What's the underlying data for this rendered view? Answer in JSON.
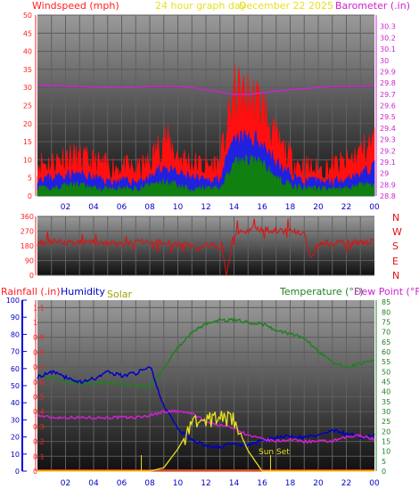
{
  "header": {
    "wind_title": "Windspeed (mph)",
    "graph_title": "24 hour graph day",
    "date": "December 22 2025",
    "baro_title": "Barometer (.in)"
  },
  "x_ticks": [
    "02",
    "04",
    "06",
    "08",
    "10",
    "12",
    "14",
    "16",
    "18",
    "20",
    "22",
    "00"
  ],
  "colors": {
    "wind_title": "#ff2020",
    "graph_title": "#e8e020",
    "baro": "#d020d0",
    "wind_avg": "#2020e0",
    "wind_gust": "#ff1010",
    "wind_low": "#108010",
    "direction": "#e01010",
    "rain": "#0000e0",
    "humidity": "#0000c8",
    "solar": "#e8e020",
    "temperature": "#208020",
    "dewpoint": "#d020d0",
    "left_axis": "#ff2020",
    "rain_axis": "#0000e0"
  },
  "direction_labels": {
    "n1": "N",
    "w": "W",
    "s": "S",
    "e": "E",
    "n2": "N"
  },
  "bottom_labels": {
    "rain": "Rainfall (.in)",
    "humidity": "Humidity",
    "solar": "Solar",
    "temperature": "Temperature (°F)",
    "dewpoint": "Dew Point (°F)",
    "sunset": "Sun Set"
  },
  "chart_data": [
    {
      "type": "line",
      "title": "Windspeed (mph) / Barometer (.in)",
      "xlabel": "",
      "ylabel": "Windspeed (mph)",
      "y2label": "Barometer (.in)",
      "ylim": [
        0,
        50
      ],
      "y2lim": [
        28.8,
        30.4
      ],
      "yticks": [
        0,
        5,
        10,
        15,
        20,
        25,
        30,
        35,
        40,
        45,
        50
      ],
      "y2ticks": [
        "28.8",
        "28.9",
        "29",
        "29.1",
        "29.2",
        "29.3",
        "29.4",
        "29.5",
        "29.6",
        "29.7",
        "29.8",
        "29.9",
        "30",
        "30.1",
        "30.2",
        "30.3"
      ],
      "x": [
        0,
        1,
        2,
        3,
        4,
        5,
        6,
        7,
        8,
        9,
        10,
        11,
        12,
        13,
        14,
        15,
        16,
        17,
        18,
        19,
        20,
        21,
        22,
        23,
        24
      ],
      "series": [
        {
          "name": "gust",
          "values": [
            9,
            9,
            11,
            10,
            9,
            8,
            8,
            7,
            9,
            16,
            11,
            9,
            8,
            9,
            28,
            27,
            25,
            15,
            10,
            8,
            7,
            8,
            9,
            12,
            15
          ]
        },
        {
          "name": "average",
          "values": [
            5,
            5,
            6,
            6,
            5,
            4,
            4,
            4,
            5,
            8,
            6,
            5,
            4,
            5,
            15,
            16,
            15,
            9,
            6,
            4,
            4,
            4,
            5,
            6,
            8
          ]
        },
        {
          "name": "low",
          "values": [
            2,
            2,
            3,
            3,
            2,
            2,
            2,
            2,
            3,
            4,
            3,
            2,
            2,
            2,
            9,
            10,
            9,
            5,
            3,
            2,
            2,
            2,
            2,
            3,
            3
          ]
        },
        {
          "name": "barometer",
          "values": [
            29.78,
            29.78,
            29.77,
            29.77,
            29.76,
            29.76,
            29.76,
            29.76,
            29.77,
            29.77,
            29.77,
            29.76,
            29.74,
            29.72,
            29.7,
            29.7,
            29.71,
            29.73,
            29.74,
            29.75,
            29.76,
            29.77,
            29.77,
            29.77,
            29.78
          ]
        }
      ]
    },
    {
      "type": "line",
      "title": "Wind Direction",
      "ylim": [
        0,
        360
      ],
      "yticks": [
        0,
        90,
        180,
        270,
        360
      ],
      "x": [
        0,
        1,
        2,
        3,
        4,
        5,
        6,
        7,
        8,
        9,
        10,
        11,
        12,
        13,
        13.5,
        14,
        15,
        16,
        17,
        18,
        19,
        19.5,
        20,
        21,
        22,
        23,
        24
      ],
      "values": [
        200,
        205,
        200,
        195,
        200,
        195,
        190,
        200,
        210,
        200,
        190,
        185,
        180,
        175,
        10,
        260,
        275,
        280,
        275,
        270,
        260,
        90,
        200,
        195,
        200,
        200,
        205
      ]
    },
    {
      "type": "line",
      "title": "Rainfall / Humidity / Solar / Temperature / Dew Point",
      "y_rain_ticks": [
        "0",
        "0.1",
        "0.2",
        "0.3",
        "0.4",
        "0.5",
        "0.6",
        "0.7",
        "0.8",
        "0.9",
        "1",
        "1.1"
      ],
      "y_hum_ticks": [
        0,
        10,
        20,
        30,
        40,
        50,
        60,
        70,
        80,
        90,
        100
      ],
      "y_temp_ticks": [
        0,
        5,
        10,
        15,
        20,
        25,
        30,
        35,
        40,
        45,
        50,
        55,
        60,
        65,
        70,
        75,
        80,
        85
      ],
      "rain_lim": [
        0,
        1.15
      ],
      "hum_lim": [
        0,
        100
      ],
      "temp_lim": [
        0,
        86
      ],
      "x": [
        0,
        1,
        2,
        3,
        4,
        5,
        6,
        7,
        8,
        9,
        10,
        11,
        12,
        13,
        14,
        15,
        16,
        17,
        18,
        19,
        20,
        21,
        22,
        23,
        24
      ],
      "series": [
        {
          "name": "Rainfall (.in)",
          "values": [
            0,
            0,
            0,
            0,
            0,
            0,
            0,
            0,
            0,
            0,
            0,
            0,
            0,
            0,
            0,
            0,
            0,
            0,
            0,
            0,
            0,
            0,
            0,
            0,
            0
          ]
        },
        {
          "name": "Humidity",
          "values": [
            55,
            58,
            55,
            52,
            54,
            58,
            56,
            57,
            62,
            38,
            25,
            18,
            15,
            14,
            16,
            15,
            18,
            20,
            20,
            20,
            21,
            24,
            22,
            20,
            21
          ]
        },
        {
          "name": "Solar",
          "values": [
            0,
            0,
            0,
            0,
            0,
            0,
            0,
            0,
            0,
            2,
            13,
            27,
            30,
            32,
            30,
            12,
            0,
            0,
            0,
            0,
            0,
            0,
            0,
            0,
            0
          ]
        },
        {
          "name": "Temperature (°F)",
          "values": [
            48,
            47,
            45,
            44,
            44,
            44,
            44,
            43,
            42,
            52,
            62,
            70,
            74,
            76,
            76,
            75,
            74,
            71,
            69,
            67,
            60,
            55,
            52,
            54,
            56
          ]
        },
        {
          "name": "Dew Point (°F)",
          "values": [
            28,
            27,
            27,
            27,
            27,
            27,
            27,
            27,
            28,
            30,
            30,
            29,
            25,
            23,
            22,
            18,
            16,
            15,
            16,
            15,
            15,
            15,
            17,
            18,
            16
          ]
        }
      ]
    }
  ]
}
